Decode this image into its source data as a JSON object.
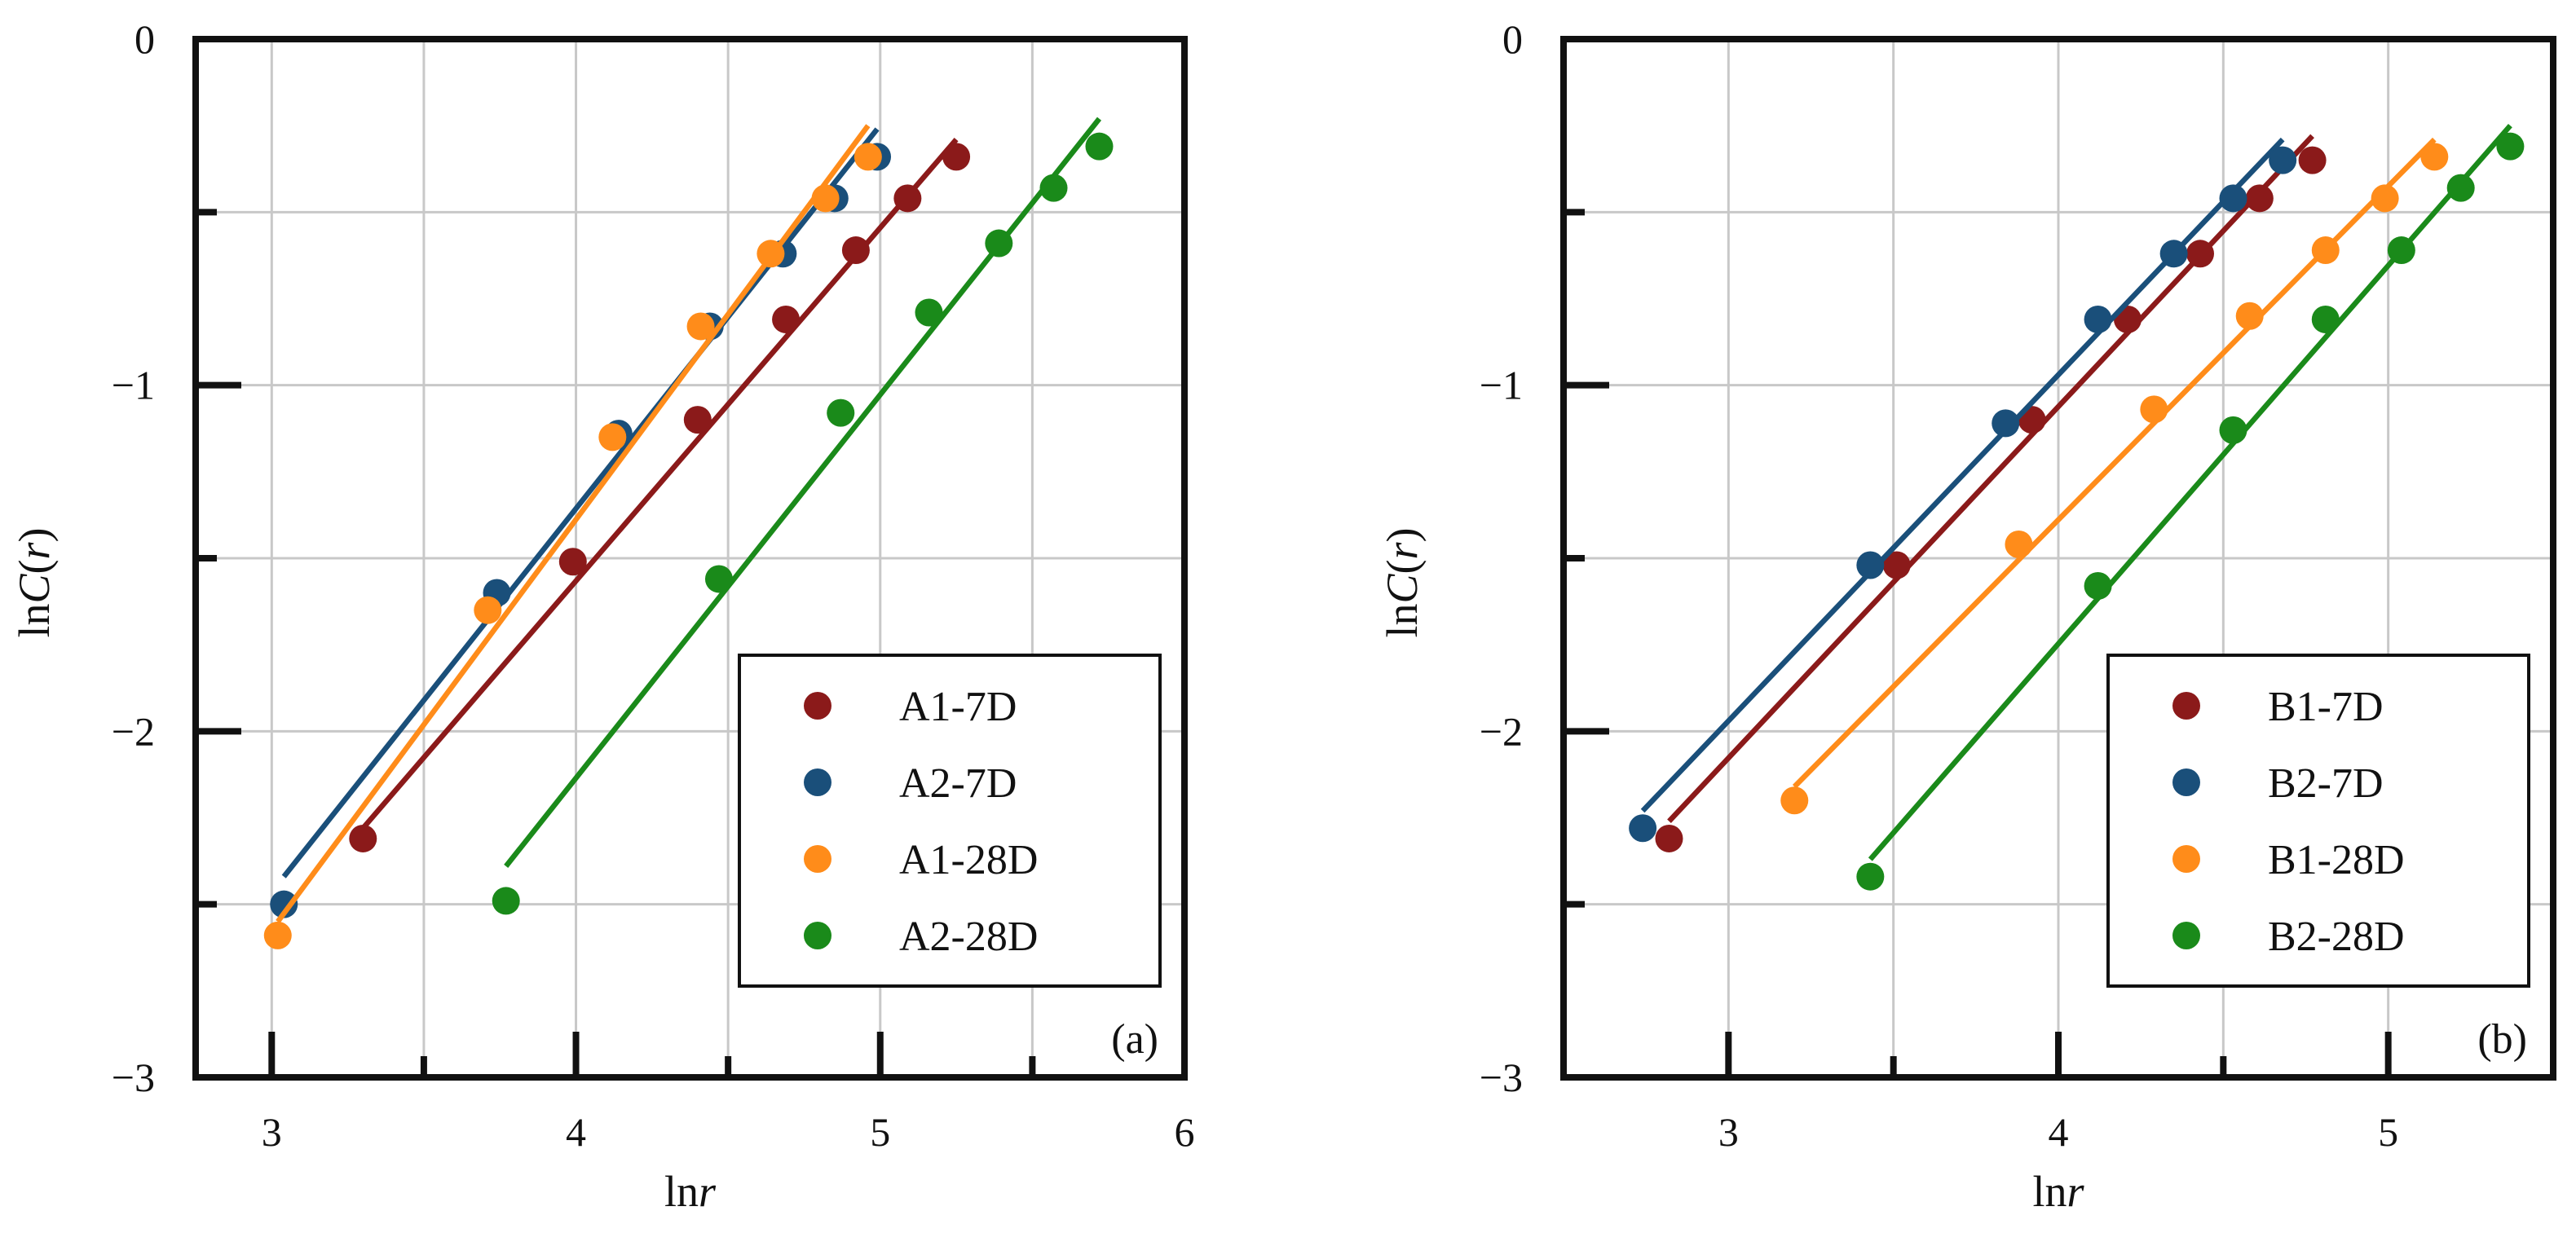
{
  "chart_data": [
    {
      "type": "scatter",
      "panel_label": "(a)",
      "xlabel": "lnr",
      "ylabel": "lnC(r)",
      "xlim": [
        2.75,
        6.0
      ],
      "ylim": [
        -3,
        0
      ],
      "xticks": [
        3,
        4,
        5,
        6
      ],
      "xtick_labels": [
        "3",
        "4",
        "5",
        "6"
      ],
      "yticks": [
        0,
        -1,
        -2,
        -3
      ],
      "ytick_labels": [
        "0",
        "−1",
        "−2",
        "−3"
      ],
      "grid": true,
      "legend_position": "bottom-right",
      "series": [
        {
          "name": "A1-7D",
          "color": "#8b1a1a",
          "x": [
            3.3,
            3.99,
            4.4,
            4.69,
            4.92,
            5.09,
            5.25
          ],
          "y": [
            -2.31,
            -1.51,
            -1.1,
            -0.81,
            -0.61,
            -0.46,
            -0.34
          ],
          "fit": [
            [
              3.3,
              -2.28
            ],
            [
              5.25,
              -0.29
            ]
          ]
        },
        {
          "name": "A2-7D",
          "color": "#1a4f7a",
          "x": [
            3.04,
            3.74,
            4.14,
            4.44,
            4.68,
            4.85,
            4.99
          ],
          "y": [
            -2.5,
            -1.6,
            -1.14,
            -0.83,
            -0.62,
            -0.46,
            -0.34
          ],
          "fit": [
            [
              3.04,
              -2.42
            ],
            [
              4.99,
              -0.26
            ]
          ]
        },
        {
          "name": "A1-28D",
          "color": "#ff8c1a",
          "x": [
            3.02,
            3.71,
            4.12,
            4.41,
            4.64,
            4.82,
            4.96
          ],
          "y": [
            -2.59,
            -1.65,
            -1.15,
            -0.83,
            -0.62,
            -0.46,
            -0.34
          ],
          "fit": [
            [
              3.02,
              -2.55
            ],
            [
              4.96,
              -0.25
            ]
          ]
        },
        {
          "name": "A2-28D",
          "color": "#1a8a1a",
          "x": [
            3.77,
            4.47,
            4.87,
            5.16,
            5.39,
            5.57,
            5.72
          ],
          "y": [
            -2.49,
            -1.56,
            -1.08,
            -0.79,
            -0.59,
            -0.43,
            -0.31
          ],
          "fit": [
            [
              3.77,
              -2.39
            ],
            [
              5.72,
              -0.23
            ]
          ]
        }
      ]
    },
    {
      "type": "scatter",
      "panel_label": "(b)",
      "xlabel": "lnr",
      "ylabel": "lnC(r)",
      "xlim": [
        2.5,
        5.5
      ],
      "ylim": [
        -3,
        0
      ],
      "xticks": [
        3,
        4,
        5
      ],
      "xtick_labels": [
        "3",
        "4",
        "5"
      ],
      "yticks": [
        0,
        -1,
        -2,
        -3
      ],
      "ytick_labels": [
        "0",
        "−1",
        "−2",
        "−3"
      ],
      "grid": true,
      "legend_position": "bottom-right",
      "series": [
        {
          "name": "B1-7D",
          "color": "#8b1a1a",
          "x": [
            2.82,
            3.51,
            3.92,
            4.21,
            4.43,
            4.61,
            4.77
          ],
          "y": [
            -2.31,
            -1.52,
            -1.1,
            -0.81,
            -0.62,
            -0.46,
            -0.35
          ],
          "fit": [
            [
              2.82,
              -2.26
            ],
            [
              4.77,
              -0.28
            ]
          ]
        },
        {
          "name": "B2-7D",
          "color": "#1a4f7a",
          "x": [
            2.74,
            3.43,
            3.84,
            4.12,
            4.35,
            4.53,
            4.68
          ],
          "y": [
            -2.28,
            -1.52,
            -1.11,
            -0.81,
            -0.62,
            -0.46,
            -0.35
          ],
          "fit": [
            [
              2.74,
              -2.23
            ],
            [
              4.68,
              -0.29
            ]
          ]
        },
        {
          "name": "B1-28D",
          "color": "#ff8c1a",
          "x": [
            3.2,
            3.88,
            4.29,
            4.58,
            4.81,
            4.99,
            5.14
          ],
          "y": [
            -2.2,
            -1.46,
            -1.07,
            -0.8,
            -0.61,
            -0.46,
            -0.34
          ],
          "fit": [
            [
              3.2,
              -2.16
            ],
            [
              5.14,
              -0.29
            ]
          ]
        },
        {
          "name": "B2-28D",
          "color": "#1a8a1a",
          "x": [
            3.43,
            4.12,
            4.53,
            4.81,
            5.04,
            5.22,
            5.37
          ],
          "y": [
            -2.42,
            -1.58,
            -1.13,
            -0.81,
            -0.61,
            -0.43,
            -0.31
          ],
          "fit": [
            [
              3.43,
              -2.37
            ],
            [
              5.37,
              -0.25
            ]
          ]
        }
      ]
    }
  ]
}
